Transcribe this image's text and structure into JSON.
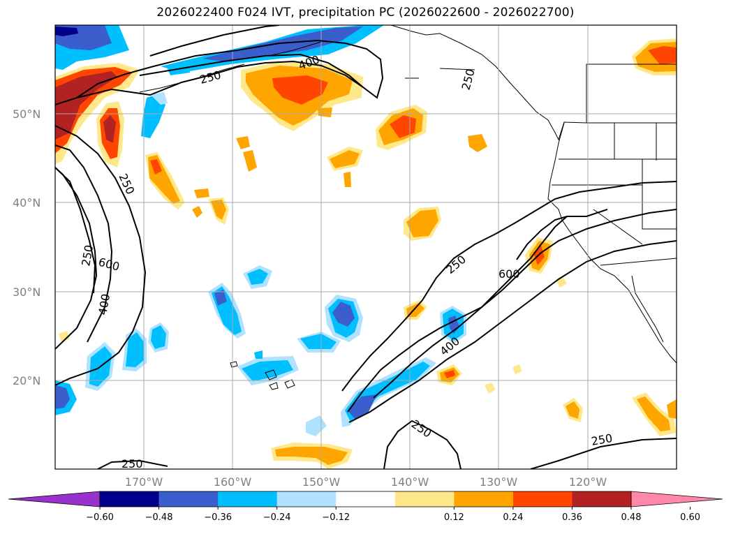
{
  "title": "2026022400 F024 IVT, precipitation PC (2026022600 - 2026022700)",
  "latitudes": [
    "50°N",
    "40°N",
    "30°N",
    "20°N"
  ],
  "longitudes": [
    "170°W",
    "160°W",
    "150°W",
    "140°W",
    "130°W",
    "120°W"
  ],
  "contour_labels": {
    "c250_nw": "250",
    "c400_n": "400",
    "c250_w": "250",
    "c250_w2": "250",
    "c600_w": "600",
    "c400_w": "400",
    "c250_ne": "250",
    "c600_e": "600",
    "c400_e": "400",
    "c250_s": "250",
    "c250_se": "250",
    "c250_bl": "250",
    "c250_top": "250"
  },
  "colorbar": {
    "ticks": [
      "−0.60",
      "−0.48",
      "−0.36",
      "−0.24",
      "−0.12",
      "0.12",
      "0.24",
      "0.36",
      "0.48",
      "0.60"
    ],
    "colors": [
      "#9932cc",
      "#00008b",
      "#3a5fcd",
      "#00bfff",
      "#b0e2ff",
      "#ffffff",
      "#ffe88a",
      "#ffa500",
      "#ff4500",
      "#b22222",
      "#ff88aa"
    ]
  },
  "colors": {
    "ocean": "#ffffff",
    "frame": "#000000",
    "grid": "#a9a9a9",
    "contour": "#000000"
  }
}
